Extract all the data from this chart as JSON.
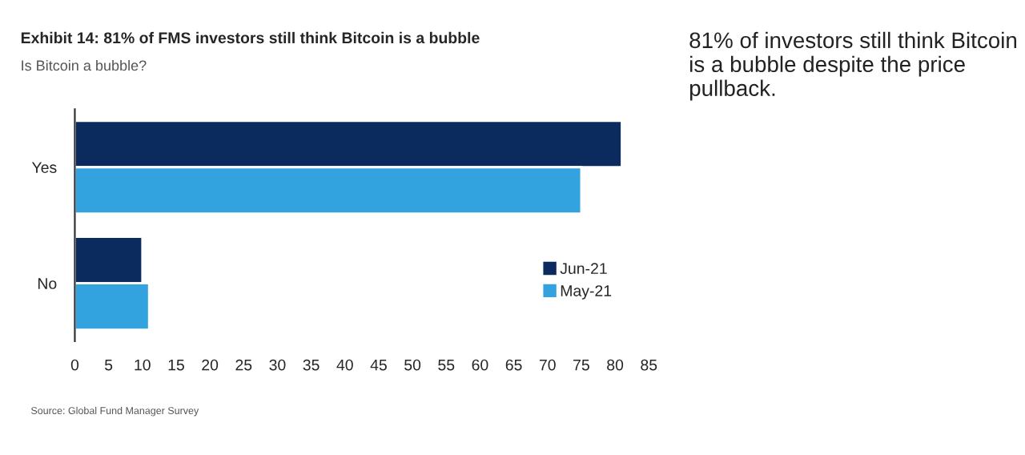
{
  "chart_data": {
    "type": "bar",
    "orientation": "horizontal",
    "title": "Exhibit 14: 81% of FMS investors still think Bitcoin is a bubble",
    "subtitle": "Is Bitcoin a bubble?",
    "categories": [
      "Yes",
      "No"
    ],
    "series": [
      {
        "name": "Jun-21",
        "color": "#0b2a5e",
        "values": [
          81,
          10
        ]
      },
      {
        "name": "May-21",
        "color": "#33a3e0",
        "values": [
          75,
          11
        ]
      }
    ],
    "xlim": [
      0,
      85
    ],
    "xticks": [
      0,
      5,
      10,
      15,
      20,
      25,
      30,
      35,
      40,
      45,
      50,
      55,
      60,
      65,
      70,
      75,
      80,
      85
    ],
    "grid": false,
    "legend": "bottom right",
    "annotations": [
      "Source: Global Fund Manager Survey",
      "81% of investors still think Bitcoin is a bubble despite the price pullback."
    ]
  }
}
